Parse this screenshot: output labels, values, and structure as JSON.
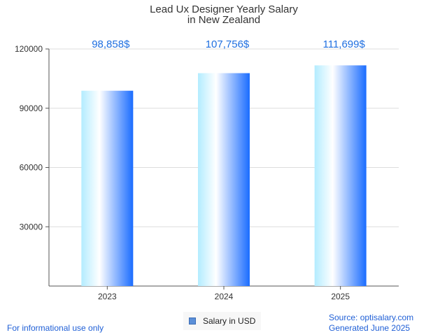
{
  "chart_data": {
    "type": "bar",
    "title_lines": [
      "Lead Ux Designer Yearly Salary",
      "in New Zealand"
    ],
    "categories": [
      "2023",
      "2024",
      "2025"
    ],
    "series": [
      {
        "name": "Salary in USD",
        "values": [
          98858,
          107756,
          111699
        ],
        "data_labels": [
          "98,858$",
          "107,756$",
          "111,699$"
        ]
      }
    ],
    "ylim": [
      0,
      120000
    ],
    "yticks": [
      30000,
      60000,
      90000,
      120000
    ],
    "ytick_labels": [
      "30000",
      "60000",
      "90000",
      "120000"
    ],
    "grid": true,
    "legend_position": "bottom-center"
  },
  "colors": {
    "bar_light": "#b3ecff",
    "bar_mid": "#ffffff",
    "bar_dark": "#1a6cff",
    "label_color": "#1f6fe0",
    "grid": "#dddddd",
    "axis": "#555555"
  },
  "footer": {
    "disclaimer": "For informational use only",
    "source": "Source: optisalary.com",
    "generated": "Generated June 2025"
  }
}
